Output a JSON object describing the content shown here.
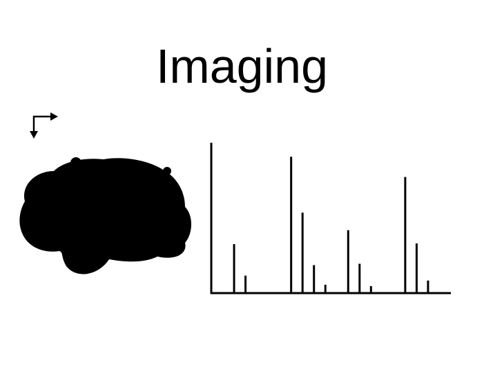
{
  "slide": {
    "title": "Imaging"
  },
  "icons": {
    "orientation": "orientation-arrows-icon",
    "brain": "brain-silhouette-icon"
  },
  "colors": {
    "ink": "#000000",
    "background": "#ffffff"
  },
  "chart_data": {
    "type": "bar",
    "title": "",
    "xlabel": "",
    "ylabel": "",
    "grid": false,
    "legend": "none",
    "x": [
      1,
      2,
      6,
      7,
      8,
      9,
      11,
      12,
      13,
      16,
      17,
      18
    ],
    "values": [
      70,
      25,
      195,
      115,
      40,
      12,
      90,
      42,
      10,
      166,
      71,
      18
    ],
    "xlim": [
      -1,
      20
    ],
    "ylim": [
      0,
      215
    ]
  }
}
